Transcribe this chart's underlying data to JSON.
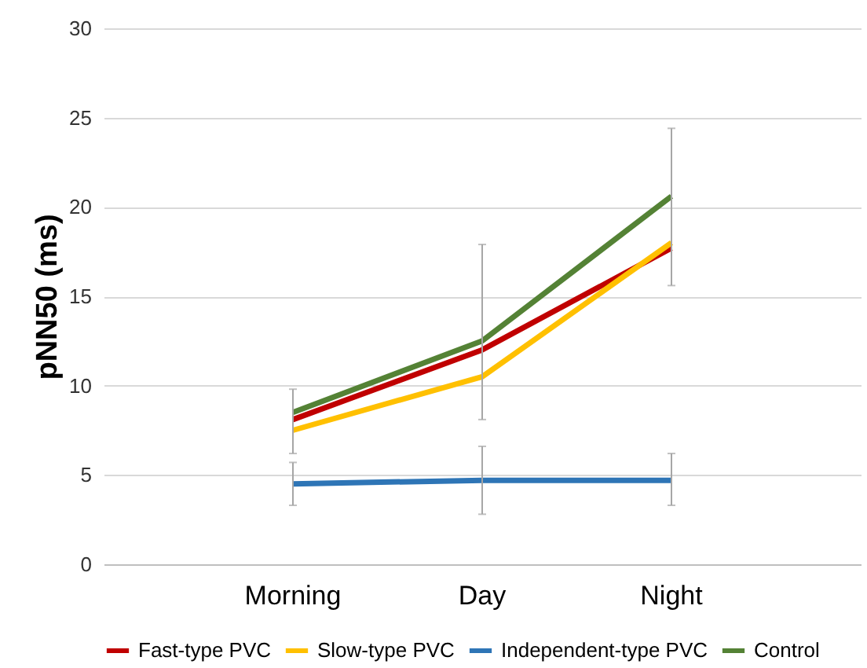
{
  "chart_data": {
    "type": "line",
    "ylabel": "pNN50 (ms)",
    "categories": [
      "Morning",
      "Day",
      "Night"
    ],
    "ylim": [
      0,
      30
    ],
    "yticks": [
      0,
      5,
      10,
      15,
      20,
      25,
      30
    ],
    "grid": "y",
    "legend": "bottom",
    "marker": "none",
    "line_style": "solid",
    "series": [
      {
        "name": "Fast-type PVC",
        "color": "#c00000",
        "values": [
          8.1,
          12.0,
          17.7
        ]
      },
      {
        "name": "Slow-type PVC",
        "color": "#ffc000",
        "values": [
          7.5,
          10.5,
          18.0
        ]
      },
      {
        "name": "Independent-type PVC",
        "color": "#2e75b6",
        "values": [
          4.5,
          4.7,
          4.7
        ],
        "errors": [
          [
            3.3,
            5.7
          ],
          [
            2.8,
            6.6
          ],
          [
            3.3,
            6.2
          ]
        ]
      },
      {
        "name": "Control",
        "color": "#548235",
        "values": [
          8.5,
          12.5,
          20.6
        ],
        "errors": [
          [
            6.2,
            9.8
          ],
          [
            8.1,
            17.9
          ],
          [
            15.6,
            24.4
          ]
        ]
      }
    ]
  }
}
